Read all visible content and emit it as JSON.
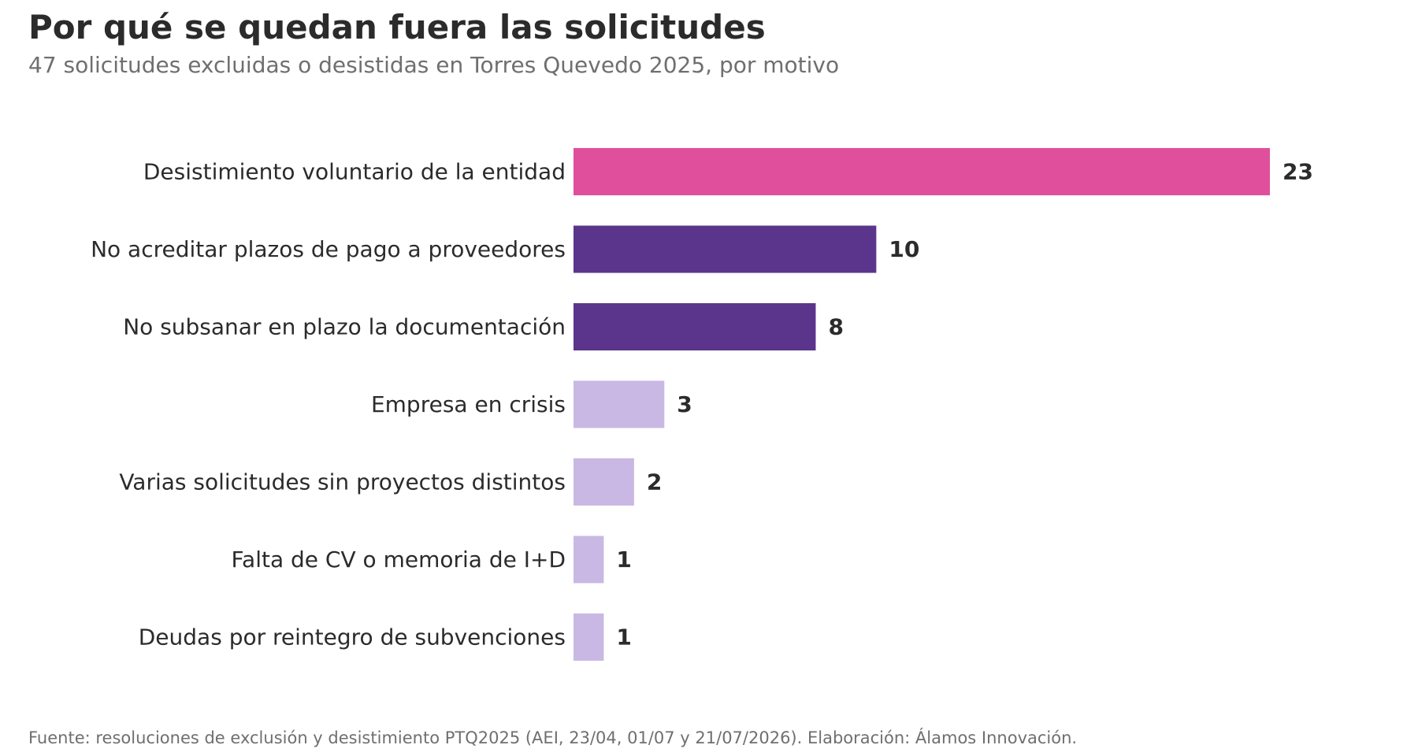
{
  "title": "Por qué se quedan fuera las solicitudes",
  "subtitle": "47 solicitudes excluidas o desistidas en Torres Quevedo 2025, por motivo",
  "footer": "Fuente: resoluciones de exclusión y desistimiento PTQ2025 (AEI, 23/04, 01/07 y 21/07/2026). Elaboración: Álamos Innovación.",
  "chart_data": {
    "type": "bar",
    "orientation": "horizontal",
    "categories": [
      "Desistimiento voluntario de la entidad",
      "No acreditar plazos de pago a proveedores",
      "No subsanar en plazo la documentación",
      "Empresa en crisis",
      "Varias solicitudes sin proyectos distintos",
      "Falta de CV o memoria de I+D",
      "Deudas por reintegro de subvenciones"
    ],
    "values": [
      23,
      10,
      8,
      3,
      2,
      1,
      1
    ],
    "colors": [
      "#e04f9b",
      "#5b358b",
      "#5b358b",
      "#c9b8e3",
      "#c9b8e3",
      "#c9b8e3",
      "#c9b8e3"
    ],
    "xlim": [
      0,
      23
    ],
    "grid": false,
    "data_labels": true,
    "title": "Por qué se quedan fuera las solicitudes",
    "subtitle": "47 solicitudes excluidas o desistidas en Torres Quevedo 2025, por motivo",
    "xlabel": "",
    "ylabel": ""
  }
}
